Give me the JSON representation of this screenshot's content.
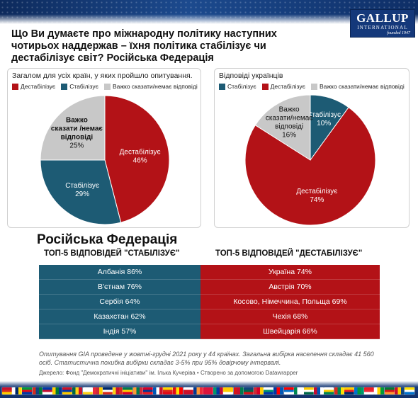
{
  "brand": {
    "name": "GALLUP",
    "sub": "INTERNATIONAL",
    "founded": "founded 1947"
  },
  "title": "Що Ви думаєте про міжнародну політику наступних чотирьох наддержав – їхня політика стабілізує чи дестабілізує світ? Російська Федерація",
  "colors": {
    "destabilize": "#b31217",
    "stabilize": "#1d5b74",
    "hard_to_say": "#c8c8c8"
  },
  "chart_data": [
    {
      "type": "pie",
      "title": "Загалом для усіх країн, у яких пройшло опитування.",
      "legend": [
        "Дестабілізує",
        "Стабілізує",
        "Важко сказати/немає відповіді"
      ],
      "slices": [
        {
          "name": "Дестабілізує",
          "value": 46,
          "label": "Дестабілізує",
          "pct": "46%"
        },
        {
          "name": "Стабілізує",
          "value": 29,
          "label": "Стабілізує",
          "pct": "29%"
        },
        {
          "name": "Важко сказати/немає відповіді",
          "value": 25,
          "label": "Важко сказати /немає відповіді",
          "pct": "25%"
        }
      ]
    },
    {
      "type": "pie",
      "title": "Відповіді українців",
      "legend": [
        "Стабілізує",
        "Дестабілізує",
        "Важко сказати/немає відповіді"
      ],
      "slices": [
        {
          "name": "Стабілізує",
          "value": 10,
          "label": "Стабілізує",
          "pct": "10%"
        },
        {
          "name": "Дестабілізує",
          "value": 74,
          "label": "Дестабілізує",
          "pct": "74%"
        },
        {
          "name": "Важко сказати/немає відповіді",
          "value": 16,
          "label": "Важко сказати/немає відповіді",
          "pct": "16%"
        }
      ]
    },
    {
      "type": "table",
      "title": "Російська Федерація",
      "columns": [
        "ТОП-5 ВІДПОВІДЕЙ \"СТАБІЛІЗУЄ\"",
        "ТОП-5 ВІДПОВІДЕЙ \"ДЕСТАБІЛІЗУЄ\""
      ],
      "rows": [
        [
          "Албанія 86%",
          "Україна 74%"
        ],
        [
          "В'єтнам 76%",
          "Австрія 70%"
        ],
        [
          "Сербія 64%",
          "Косово, Німеччина, Польща 69%"
        ],
        [
          "Казахстан 62%",
          "Чехія 68%"
        ],
        [
          "Індія 57%",
          "Швейцарія 66%"
        ]
      ]
    }
  ],
  "note": "Опитування GIA проведене у жовтні-грудні 2021 року у 44 країнах. Загальна вибірка населення складає 41 560 осіб. Статистична похибка вибірки складає 3-5% при 95% довірчому інтервалі.",
  "source": "Джерело: Фонд \"Демократичні ініціативи\" ім. Ілька Кучеріва • Створено за допомогою Datawrapper",
  "flag_colors": [
    "#c8102e",
    "#ffffff",
    "#009b3a",
    "#d52b1e",
    "#0038a8",
    "#ffce00",
    "#ce1126",
    "#006847",
    "#ffffff",
    "#ed2939",
    "#002868",
    "#fcd116",
    "#007a4d",
    "#ff9933",
    "#d80027",
    "#0057b7",
    "#ffd700",
    "#e30a17",
    "#ffffff",
    "#003893",
    "#dc143c",
    "#00966e",
    "#ffcc00",
    "#d7141a",
    "#11457e",
    "#ce2b37",
    "#ffffff",
    "#0039a6",
    "#ff0000",
    "#008751",
    "#fecb00",
    "#c60c30",
    "#ffffff",
    "#da291c",
    "#ffcd00",
    "#0072ce",
    "#ed1c24",
    "#ffffff",
    "#007934",
    "#c8102e",
    "#ffde00"
  ]
}
